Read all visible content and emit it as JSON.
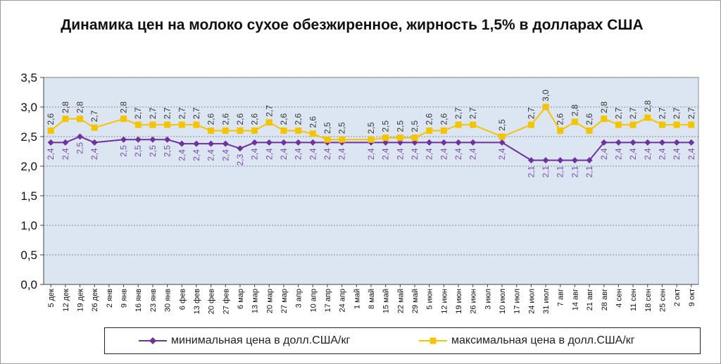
{
  "chart_data": {
    "type": "line",
    "title": "Динамика цен на молоко сухое обезжиренное, жирность 1,5%  в долларах США",
    "xlabel": "",
    "ylabel": "",
    "ylim": [
      0,
      3.5
    ],
    "yticks": [
      "0,0",
      "0,5",
      "1,0",
      "1,5",
      "2,0",
      "2,5",
      "3,0",
      "3,5"
    ],
    "grid": "horizontal dashed",
    "legend_position": "bottom",
    "plot_background": "#dce6f2",
    "categories": [
      "5 дек",
      "12 дек",
      "19 дек",
      "26 дек",
      "2 янв",
      "9 янв",
      "16 янв",
      "23 янв",
      "30 янв",
      "6 фев",
      "13 фев",
      "20 фев",
      "27 фев",
      "6 мар",
      "13 мар",
      "20 мар",
      "27 мар",
      "3 апр",
      "10 апр",
      "17 апр",
      "24 апр",
      "1 май",
      "8 май",
      "15 май",
      "22 май",
      "29 май",
      "5 июн",
      "12 июн",
      "19 июн",
      "26 июн",
      "3 июл",
      "10 июл",
      "17 июл",
      "24 июл",
      "31 июл",
      "7 авг",
      "14 авг",
      "21 авг",
      "28 авг",
      "4 сен",
      "11 сен",
      "18 сен",
      "25 сен",
      "2 окт",
      "9 окт"
    ],
    "series": [
      {
        "name": "минимальная цена в долл.США/кг",
        "color": "#7030a0",
        "marker": "diamond",
        "values": [
          2.4,
          2.4,
          2.5,
          2.4,
          null,
          2.45,
          2.45,
          2.45,
          2.45,
          2.38,
          2.38,
          2.38,
          2.38,
          2.3,
          2.4,
          2.4,
          2.4,
          2.4,
          2.4,
          2.4,
          2.4,
          null,
          2.4,
          2.4,
          2.4,
          2.4,
          2.4,
          2.4,
          2.4,
          2.4,
          null,
          2.4,
          null,
          2.1,
          2.1,
          2.1,
          2.1,
          2.1,
          2.4,
          2.4,
          2.4,
          2.4,
          2.4,
          2.4,
          2.4
        ],
        "labels": [
          "2,4",
          "2,4",
          "2,5",
          "2,4",
          "",
          "2,5",
          "2,5",
          "2,5",
          "2,5",
          "2,4",
          "2,4",
          "2,4",
          "2,4",
          "2,3",
          "2,4",
          "2,4",
          "2,4",
          "2,4",
          "2,4",
          "2,4",
          "2,4",
          "",
          "2,4",
          "2,4",
          "2,4",
          "2,4",
          "2,4",
          "2,4",
          "2,4",
          "2,4",
          "",
          "2,4",
          "",
          "2,1",
          "2,1",
          "2,1",
          "2,1",
          "2,1",
          "2,4",
          "2,4",
          "2,4",
          "2,4",
          "2,4",
          "2,4",
          "2,4"
        ]
      },
      {
        "name": "максимальная цена в долл.США/кг",
        "color": "#f5c400",
        "marker": "square",
        "values": [
          2.6,
          2.8,
          2.8,
          2.65,
          null,
          2.8,
          2.7,
          2.7,
          2.7,
          2.7,
          2.7,
          2.6,
          2.6,
          2.6,
          2.6,
          2.74,
          2.6,
          2.6,
          2.55,
          2.45,
          2.45,
          null,
          2.45,
          2.48,
          2.48,
          2.48,
          2.6,
          2.6,
          2.7,
          2.7,
          null,
          2.5,
          null,
          2.7,
          3.0,
          2.6,
          2.75,
          2.6,
          2.8,
          2.7,
          2.7,
          2.82,
          2.7,
          2.7,
          2.7
        ],
        "labels": [
          "2,6",
          "2,8",
          "2,8",
          "2,7",
          "",
          "2,8",
          "2,7",
          "2,7",
          "2,7",
          "2,7",
          "2,7",
          "2,6",
          "2,6",
          "2,6",
          "2,6",
          "2,7",
          "2,6",
          "2,6",
          "2,6",
          "2,5",
          "2,5",
          "",
          "2,5",
          "2,5",
          "2,5",
          "2,5",
          "2,6",
          "2,6",
          "2,7",
          "2,7",
          "",
          "2,5",
          "",
          "2,7",
          "3,0",
          "2,6",
          "2,8",
          "2,6",
          "2,8",
          "2,7",
          "2,7",
          "2,8",
          "2,7",
          "2,7",
          "2,7"
        ]
      }
    ]
  }
}
